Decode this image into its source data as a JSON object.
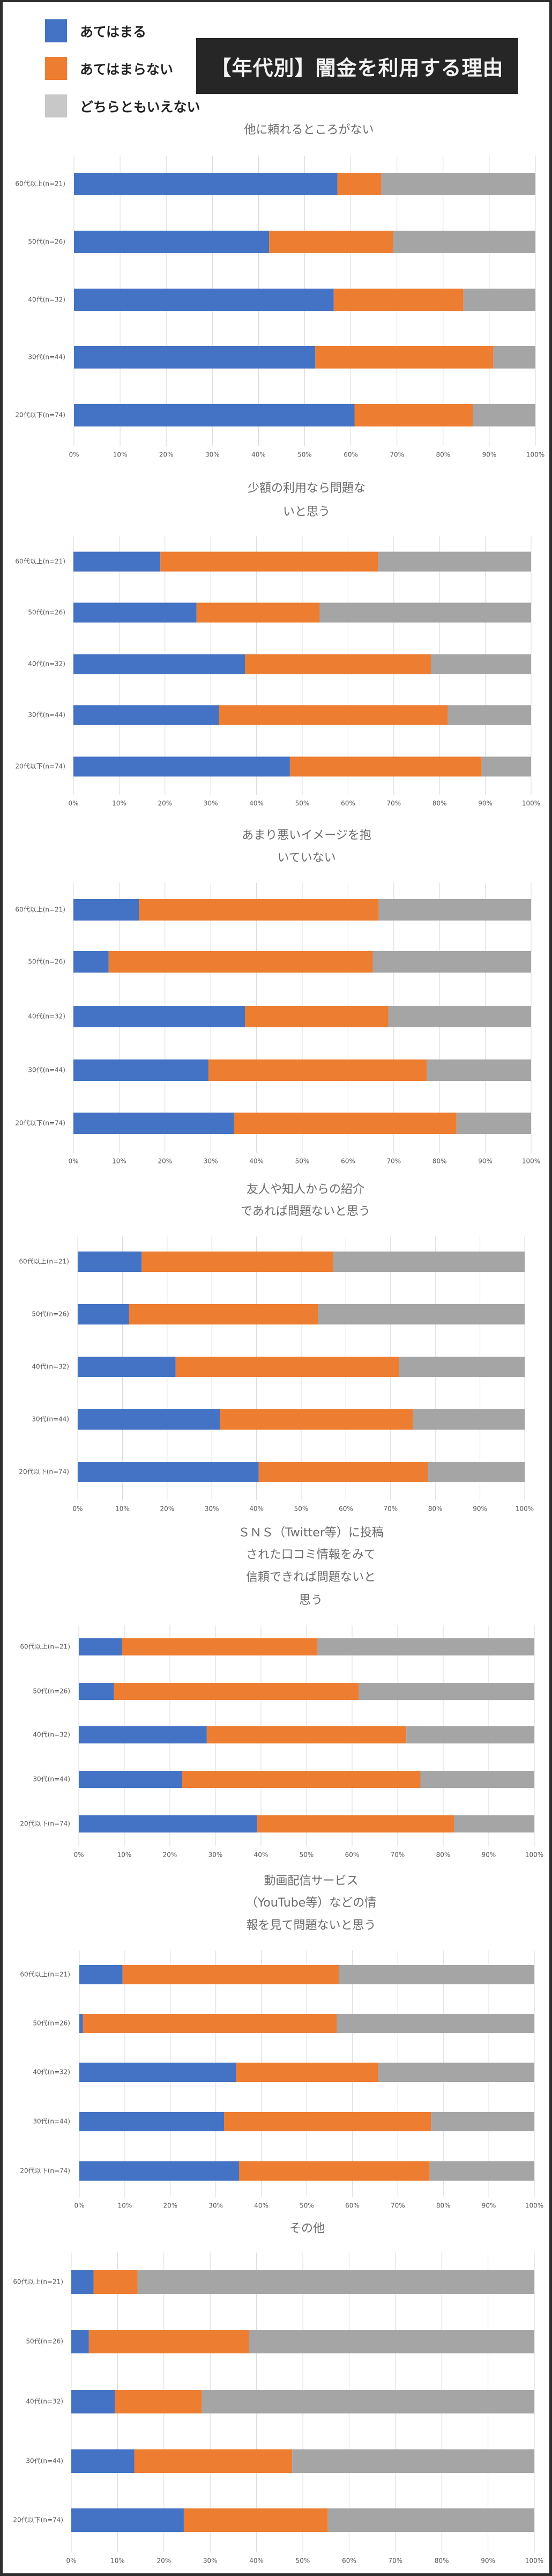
{
  "header": {
    "title": "【年代別】闇金を利用する理由"
  },
  "legend": [
    {
      "label": "あてはまる",
      "color": "#4472c4"
    },
    {
      "label": "あてはまらない",
      "color": "#ed7d31"
    },
    {
      "label": "どちらともいえない",
      "color": "#a5a5a5"
    }
  ],
  "chart_data": [
    {
      "type": "bar",
      "orientation": "horizontal",
      "stacked": true,
      "title": [
        "他に頼れるところがない"
      ],
      "categories": [
        "60代以上(n=21)",
        "50代(n=26)",
        "40代(n=32)",
        "30代(n=44)",
        "20代以下(n=74)"
      ],
      "series": [
        {
          "name": "あてはまる",
          "values": [
            57.1,
            42.3,
            56.3,
            52.3,
            60.8
          ]
        },
        {
          "name": "あてはまらない",
          "values": [
            9.5,
            26.9,
            28.1,
            38.6,
            25.7
          ]
        },
        {
          "name": "どちらともいえない",
          "values": [
            33.3,
            30.8,
            15.6,
            9.1,
            13.5
          ]
        }
      ],
      "xticks": [
        "0%",
        "10%",
        "20%",
        "30%",
        "40%",
        "50%",
        "60%",
        "70%",
        "80%",
        "90%",
        "100%"
      ],
      "xlim": [
        0,
        100
      ],
      "grid": true
    },
    {
      "type": "bar",
      "orientation": "horizontal",
      "stacked": true,
      "title": [
        "少額の利用なら問題な",
        "いと思う"
      ],
      "categories": [
        "60代以上(n=21)",
        "50代(n=26)",
        "40代(n=32)",
        "30代(n=44)",
        "20代以下(n=74)"
      ],
      "series": [
        {
          "name": "あてはまる",
          "values": [
            19.0,
            26.9,
            37.5,
            31.8,
            47.3
          ]
        },
        {
          "name": "あてはまらない",
          "values": [
            47.6,
            26.9,
            40.6,
            50.0,
            41.9
          ]
        },
        {
          "name": "どちらともいえない",
          "values": [
            33.3,
            46.2,
            21.9,
            18.2,
            10.8
          ]
        }
      ],
      "xticks": [
        "0%",
        "10%",
        "20%",
        "30%",
        "40%",
        "50%",
        "60%",
        "70%",
        "80%",
        "90%",
        "100%"
      ],
      "xlim": [
        0,
        100
      ],
      "grid": true
    },
    {
      "type": "bar",
      "orientation": "horizontal",
      "stacked": true,
      "title": [
        "あまり悪いイメージを抱",
        "いていない"
      ],
      "categories": [
        "60代以上(n=21)",
        "50代(n=26)",
        "40代(n=32)",
        "30代(n=44)",
        "20代以下(n=74)"
      ],
      "series": [
        {
          "name": "あてはまる",
          "values": [
            14.3,
            7.7,
            37.5,
            29.5,
            35.1
          ]
        },
        {
          "name": "あてはまらない",
          "values": [
            52.4,
            57.7,
            31.3,
            47.7,
            48.6
          ]
        },
        {
          "name": "どちらともいえない",
          "values": [
            33.3,
            34.6,
            31.3,
            22.7,
            16.2
          ]
        }
      ],
      "xticks": [
        "0%",
        "10%",
        "20%",
        "30%",
        "40%",
        "50%",
        "60%",
        "70%",
        "80%",
        "90%",
        "100%"
      ],
      "xlim": [
        0,
        100
      ],
      "grid": true
    },
    {
      "type": "bar",
      "orientation": "horizontal",
      "stacked": true,
      "title": [
        "友人や知人からの紹介",
        "であれば問題ないと思う"
      ],
      "categories": [
        "60代以上(n=21)",
        "50代(n=26)",
        "40代(n=32)",
        "30代(n=44)",
        "20代以下(n=74)"
      ],
      "series": [
        {
          "name": "あてはまる",
          "values": [
            14.3,
            11.5,
            21.9,
            31.8,
            40.5
          ]
        },
        {
          "name": "あてはまらない",
          "values": [
            42.9,
            42.3,
            50.0,
            43.2,
            37.8
          ]
        },
        {
          "name": "どちらともいえない",
          "values": [
            42.9,
            46.2,
            28.1,
            25.0,
            21.6
          ]
        }
      ],
      "xticks": [
        "0%",
        "10%",
        "20%",
        "30%",
        "40%",
        "50%",
        "60%",
        "70%",
        "80%",
        "90%",
        "100%"
      ],
      "xlim": [
        0,
        100
      ],
      "grid": true
    },
    {
      "type": "bar",
      "orientation": "horizontal",
      "stacked": true,
      "title": [
        "ＳＮＳ（Twitter等）に投稿",
        "された口コミ情報をみて",
        "信頼できれば問題ないと",
        "思う"
      ],
      "categories": [
        "60代以上(n=21)",
        "50代(n=26)",
        "40代(n=32)",
        "30代(n=44)",
        "20代以下(n=74)"
      ],
      "series": [
        {
          "name": "あてはまる",
          "values": [
            9.5,
            7.7,
            28.1,
            22.7,
            39.2
          ]
        },
        {
          "name": "あてはまらない",
          "values": [
            42.9,
            53.8,
            43.8,
            52.3,
            43.2
          ]
        },
        {
          "name": "どちらともいえない",
          "values": [
            47.6,
            38.5,
            28.1,
            25.0,
            17.6
          ]
        }
      ],
      "xticks": [
        "0%",
        "10%",
        "20%",
        "30%",
        "40%",
        "50%",
        "60%",
        "70%",
        "80%",
        "90%",
        "100%"
      ],
      "xlim": [
        0,
        100
      ],
      "grid": true
    },
    {
      "type": "bar",
      "orientation": "horizontal",
      "stacked": true,
      "title": [
        "動画配信サービス",
        "（YouTube等）などの情",
        "報を見て問題ないと思う"
      ],
      "categories": [
        "60代以上(n=21)",
        "50代(n=26)",
        "40代(n=32)",
        "30代(n=44)",
        "20代以下(n=74)"
      ],
      "series": [
        {
          "name": "あてはまる",
          "values": [
            9.5,
            0.8,
            34.4,
            31.8,
            35.1
          ]
        },
        {
          "name": "あてはまらない",
          "values": [
            47.6,
            55.8,
            31.3,
            45.5,
            41.9
          ]
        },
        {
          "name": "どちらともいえない",
          "values": [
            42.9,
            43.4,
            34.4,
            22.7,
            23.0
          ]
        }
      ],
      "xticks": [
        "0%",
        "10%",
        "20%",
        "30%",
        "40%",
        "50%",
        "60%",
        "70%",
        "80%",
        "90%",
        "100%"
      ],
      "xlim": [
        0,
        100
      ],
      "grid": true
    },
    {
      "type": "bar",
      "orientation": "horizontal",
      "stacked": true,
      "title": [
        "その他"
      ],
      "categories": [
        "60代以上(n=21)",
        "50代(n=26)",
        "40代(n=32)",
        "30代(n=44)",
        "20代以下(n=74)"
      ],
      "series": [
        {
          "name": "あてはまる",
          "values": [
            4.8,
            3.8,
            9.4,
            13.6,
            24.3
          ]
        },
        {
          "name": "あてはまらない",
          "values": [
            9.5,
            34.6,
            18.8,
            34.1,
            31.1
          ]
        },
        {
          "name": "どちらともいえない",
          "values": [
            85.7,
            61.5,
            71.9,
            52.3,
            44.6
          ]
        }
      ],
      "xticks": [
        "0%",
        "10%",
        "20%",
        "30%",
        "40%",
        "50%",
        "60%",
        "70%",
        "80%",
        "90%",
        "100%"
      ],
      "xlim": [
        0,
        100
      ],
      "grid": true
    }
  ]
}
